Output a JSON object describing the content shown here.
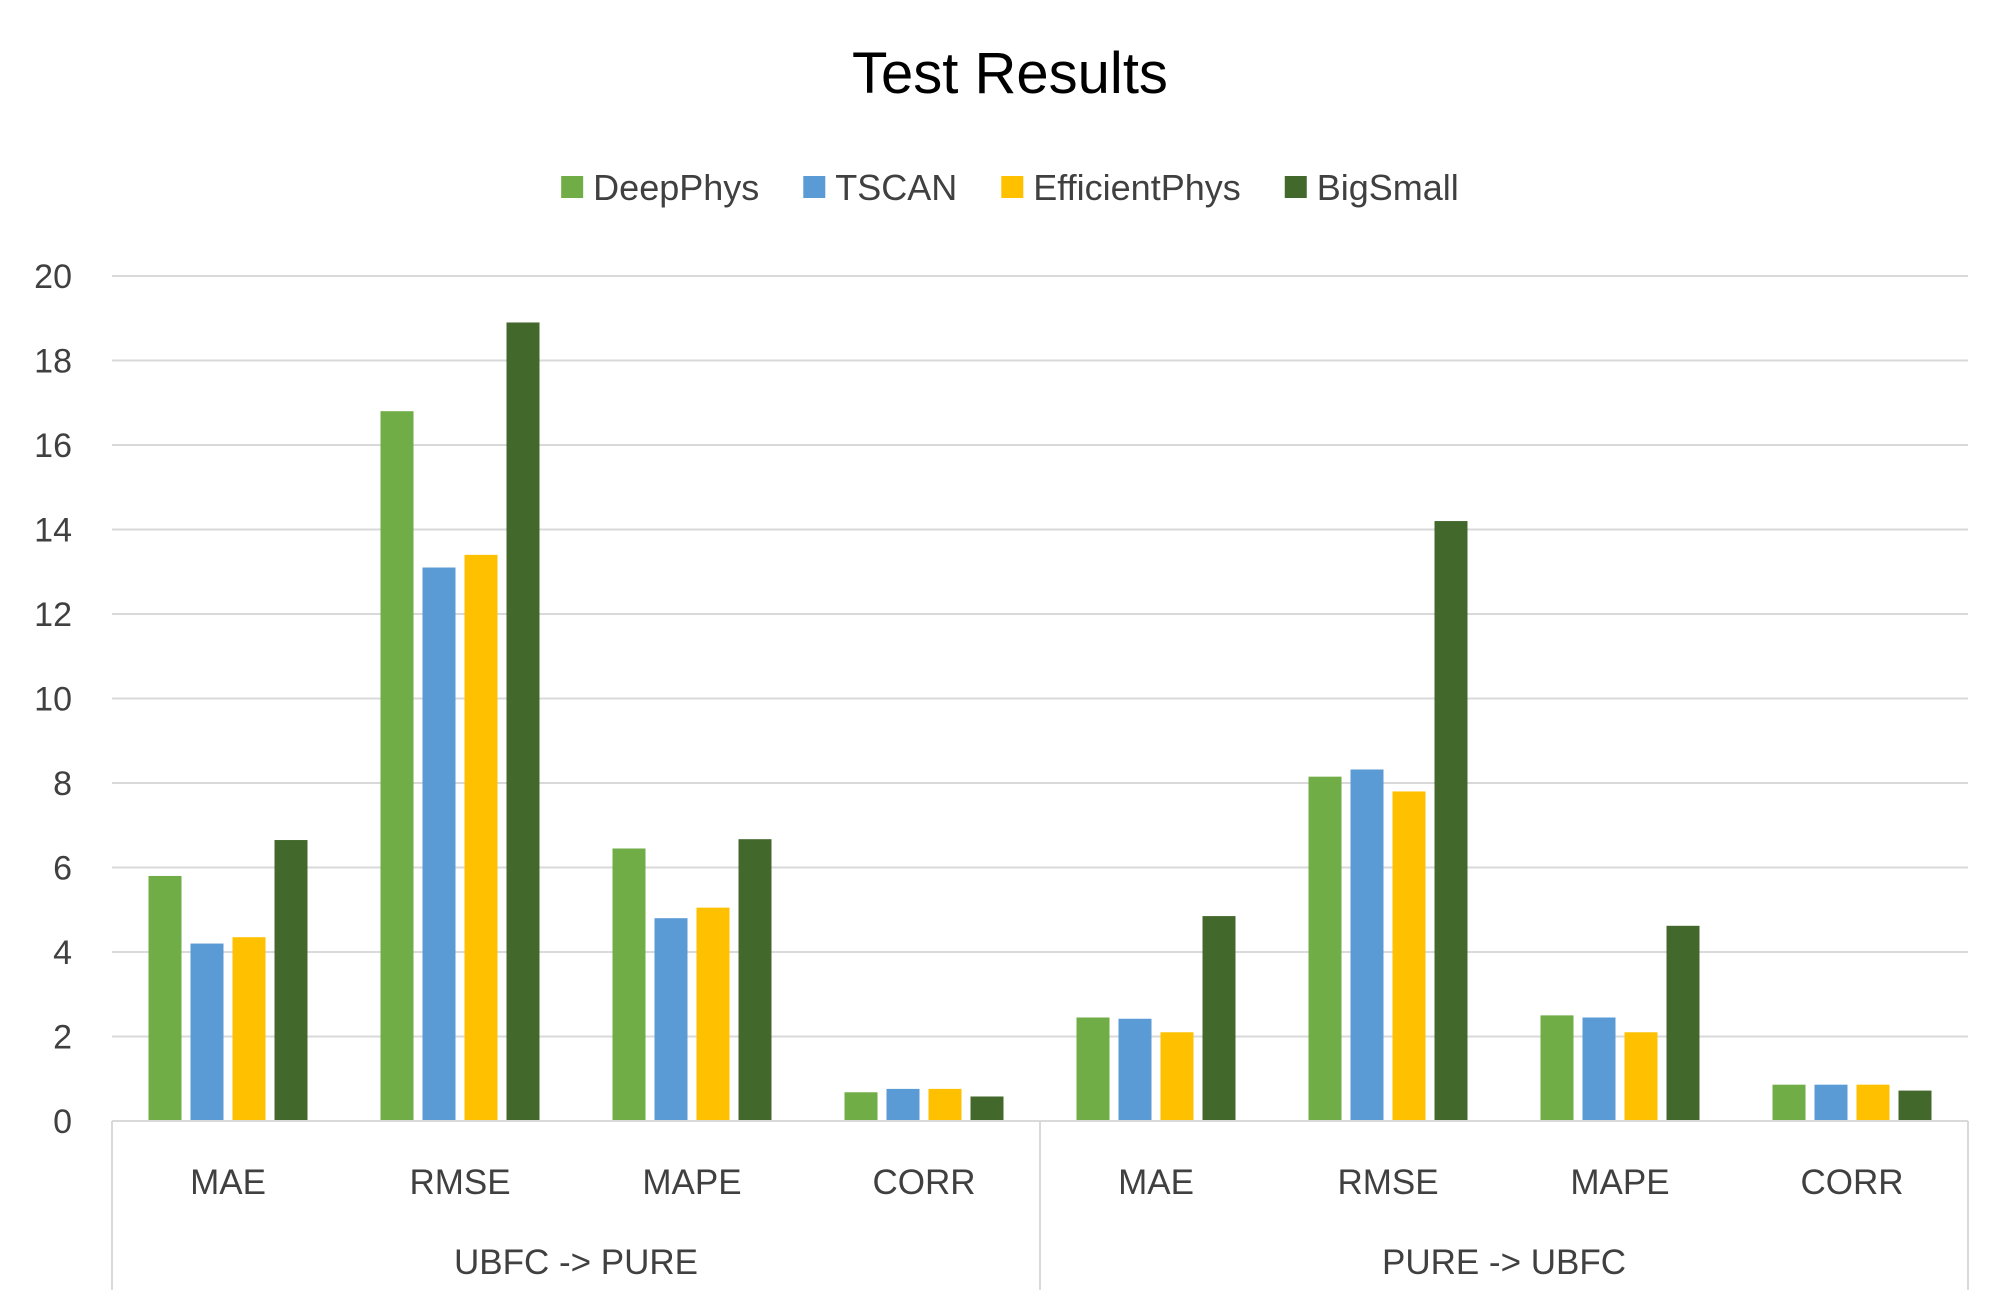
{
  "chart_data": {
    "type": "bar",
    "title": "Test Results",
    "xlabel": "",
    "ylabel": "",
    "ylim": [
      0,
      20
    ],
    "yticks": [
      0,
      2,
      4,
      6,
      8,
      10,
      12,
      14,
      16,
      18,
      20
    ],
    "grid": true,
    "legend_position": "top",
    "groups": [
      {
        "label": "UBFC -> PURE",
        "categories": [
          "MAE",
          "RMSE",
          "MAPE",
          "CORR"
        ]
      },
      {
        "label": "PURE -> UBFC",
        "categories": [
          "MAE",
          "RMSE",
          "MAPE",
          "CORR"
        ]
      }
    ],
    "categories": [
      "MAE",
      "RMSE",
      "MAPE",
      "CORR",
      "MAE",
      "RMSE",
      "MAPE",
      "CORR"
    ],
    "series": [
      {
        "name": "DeepPhys",
        "color": "#70ad47",
        "values": [
          5.8,
          16.8,
          6.45,
          0.68,
          2.45,
          8.15,
          2.5,
          0.86
        ]
      },
      {
        "name": "TSCAN",
        "color": "#5b9bd5",
        "values": [
          4.2,
          13.1,
          4.8,
          0.76,
          2.42,
          8.32,
          2.45,
          0.86
        ]
      },
      {
        "name": "EfficientPhys",
        "color": "#ffc000",
        "values": [
          4.35,
          13.4,
          5.05,
          0.76,
          2.1,
          7.8,
          2.1,
          0.86
        ]
      },
      {
        "name": "BigSmall",
        "color": "#43682b",
        "values": [
          6.65,
          18.9,
          6.67,
          0.58,
          4.85,
          14.2,
          4.62,
          0.72
        ]
      }
    ]
  }
}
